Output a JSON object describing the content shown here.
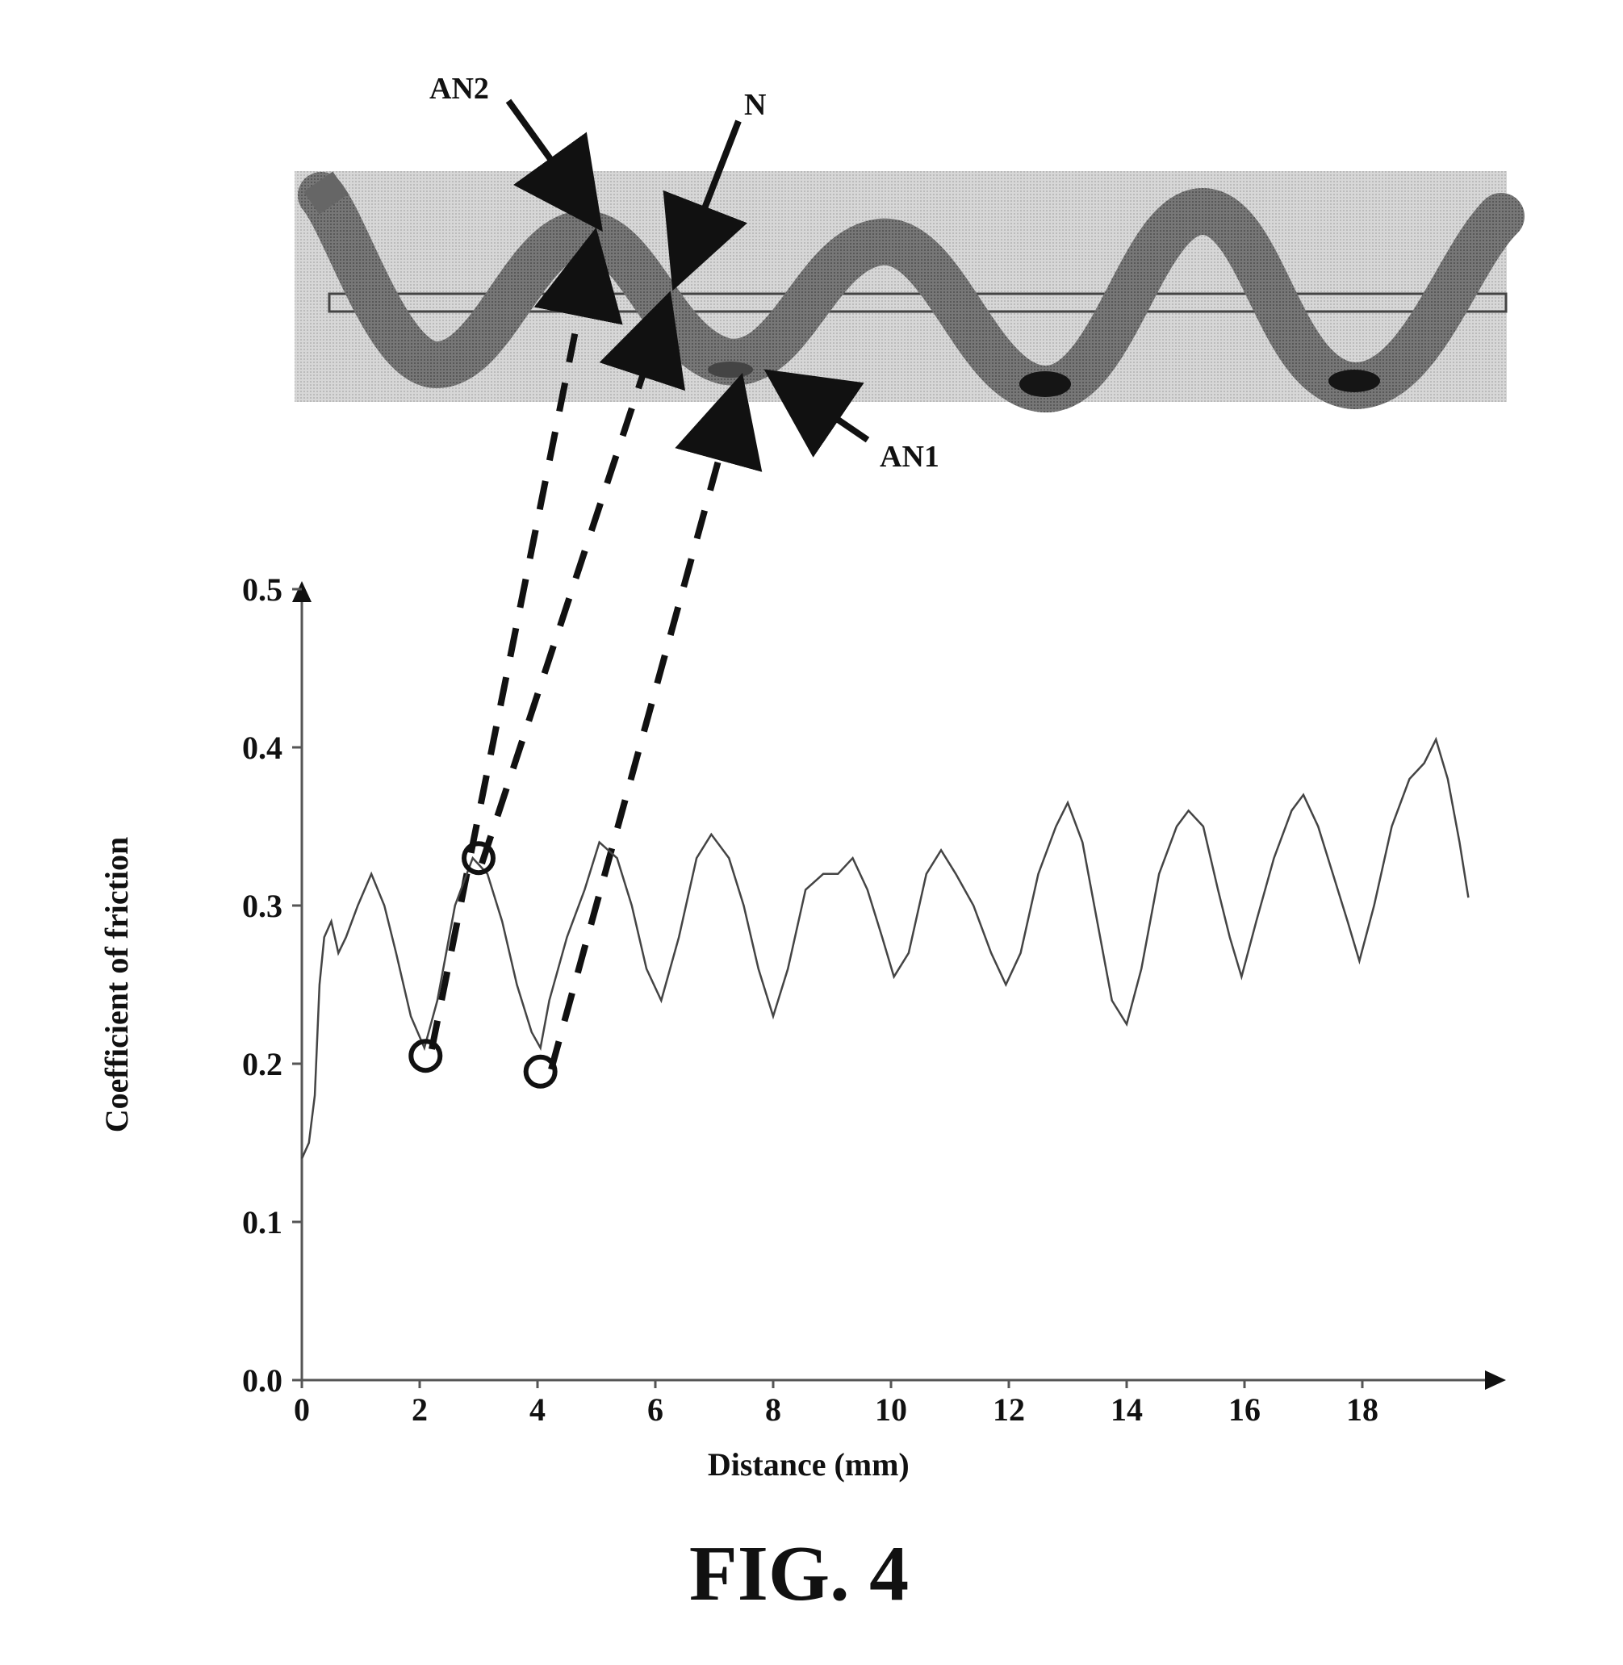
{
  "figure": {
    "caption": "FIG. 4",
    "top_callouts": [
      {
        "label": "AN2"
      },
      {
        "label": "N"
      },
      {
        "label": "AN1"
      }
    ]
  },
  "chart_data": {
    "type": "line",
    "title": "",
    "xlabel": "Distance (mm)",
    "ylabel": "Coefficient of friction",
    "xlim": [
      0,
      20
    ],
    "ylim": [
      0,
      0.5
    ],
    "xticks": [
      0,
      2,
      4,
      6,
      8,
      10,
      12,
      14,
      16,
      18
    ],
    "yticks": [
      0.0,
      0.1,
      0.2,
      0.3,
      0.4,
      0.5
    ],
    "xtick_labels": [
      "0",
      "2",
      "4",
      "6",
      "8",
      "10",
      "12",
      "14",
      "16",
      "18"
    ],
    "ytick_labels": [
      "0.0",
      "0.1",
      "0.2",
      "0.3",
      "0.4",
      "0.5"
    ],
    "grid": false,
    "series": [
      {
        "color": "#444444",
        "points": [
          [
            0.0,
            0.14
          ],
          [
            0.12,
            0.15
          ],
          [
            0.22,
            0.18
          ],
          [
            0.3,
            0.25
          ],
          [
            0.38,
            0.28
          ],
          [
            0.5,
            0.29
          ],
          [
            0.62,
            0.27
          ],
          [
            0.75,
            0.28
          ],
          [
            0.95,
            0.3
          ],
          [
            1.18,
            0.32
          ],
          [
            1.4,
            0.3
          ],
          [
            1.6,
            0.27
          ],
          [
            1.85,
            0.23
          ],
          [
            2.08,
            0.21
          ],
          [
            2.3,
            0.24
          ],
          [
            2.6,
            0.3
          ],
          [
            2.9,
            0.33
          ],
          [
            3.15,
            0.32
          ],
          [
            3.4,
            0.29
          ],
          [
            3.65,
            0.25
          ],
          [
            3.9,
            0.22
          ],
          [
            4.05,
            0.21
          ],
          [
            4.2,
            0.24
          ],
          [
            4.5,
            0.28
          ],
          [
            4.8,
            0.31
          ],
          [
            5.05,
            0.34
          ],
          [
            5.35,
            0.33
          ],
          [
            5.6,
            0.3
          ],
          [
            5.85,
            0.26
          ],
          [
            6.1,
            0.24
          ],
          [
            6.4,
            0.28
          ],
          [
            6.7,
            0.33
          ],
          [
            6.95,
            0.345
          ],
          [
            7.25,
            0.33
          ],
          [
            7.5,
            0.3
          ],
          [
            7.75,
            0.26
          ],
          [
            8.0,
            0.23
          ],
          [
            8.25,
            0.26
          ],
          [
            8.55,
            0.31
          ],
          [
            8.85,
            0.32
          ],
          [
            9.1,
            0.32
          ],
          [
            9.35,
            0.33
          ],
          [
            9.6,
            0.31
          ],
          [
            9.85,
            0.28
          ],
          [
            10.05,
            0.255
          ],
          [
            10.3,
            0.27
          ],
          [
            10.6,
            0.32
          ],
          [
            10.85,
            0.335
          ],
          [
            11.1,
            0.32
          ],
          [
            11.4,
            0.3
          ],
          [
            11.7,
            0.27
          ],
          [
            11.95,
            0.25
          ],
          [
            12.2,
            0.27
          ],
          [
            12.5,
            0.32
          ],
          [
            12.8,
            0.35
          ],
          [
            13.0,
            0.365
          ],
          [
            13.25,
            0.34
          ],
          [
            13.5,
            0.29
          ],
          [
            13.75,
            0.24
          ],
          [
            14.0,
            0.225
          ],
          [
            14.25,
            0.26
          ],
          [
            14.55,
            0.32
          ],
          [
            14.85,
            0.35
          ],
          [
            15.05,
            0.36
          ],
          [
            15.3,
            0.35
          ],
          [
            15.55,
            0.31
          ],
          [
            15.75,
            0.28
          ],
          [
            15.95,
            0.255
          ],
          [
            16.2,
            0.29
          ],
          [
            16.5,
            0.33
          ],
          [
            16.8,
            0.36
          ],
          [
            17.0,
            0.37
          ],
          [
            17.25,
            0.35
          ],
          [
            17.5,
            0.32
          ],
          [
            17.75,
            0.29
          ],
          [
            17.95,
            0.265
          ],
          [
            18.2,
            0.3
          ],
          [
            18.5,
            0.35
          ],
          [
            18.8,
            0.38
          ],
          [
            19.05,
            0.39
          ],
          [
            19.25,
            0.405
          ],
          [
            19.45,
            0.38
          ],
          [
            19.65,
            0.34
          ],
          [
            19.8,
            0.305
          ]
        ]
      }
    ],
    "highlighted_points": [
      {
        "x": 2.1,
        "y": 0.205
      },
      {
        "x": 3.0,
        "y": 0.33
      },
      {
        "x": 4.05,
        "y": 0.195
      }
    ]
  }
}
